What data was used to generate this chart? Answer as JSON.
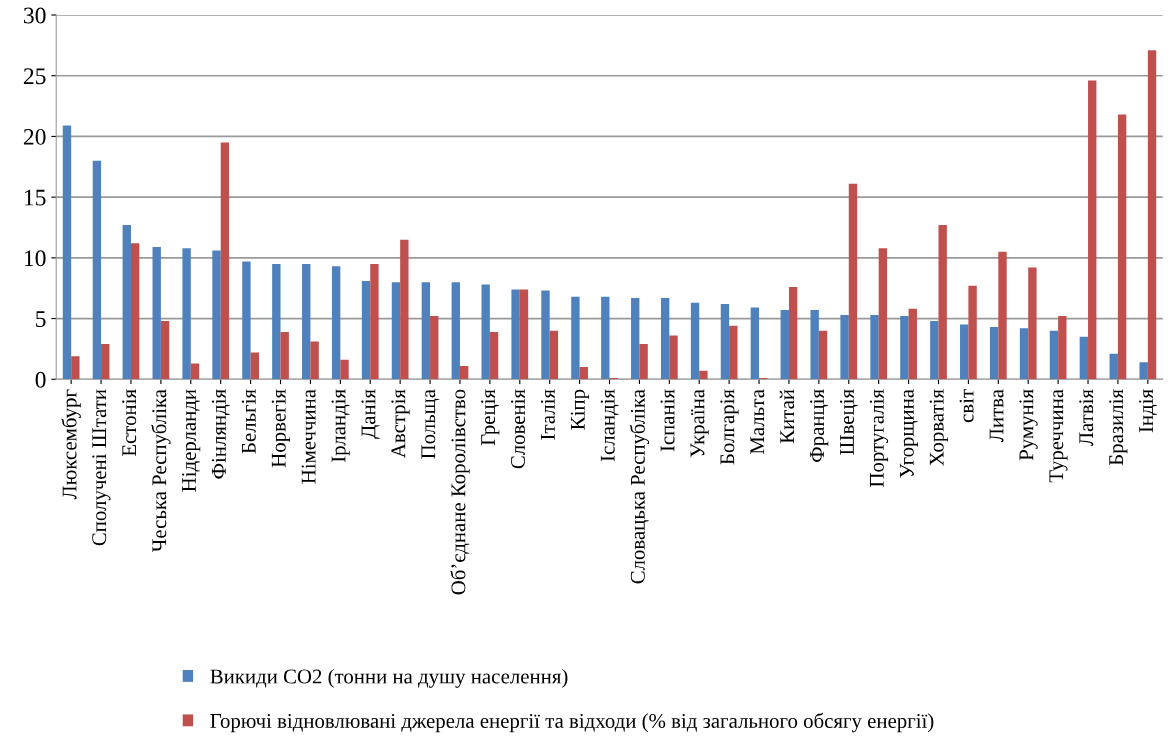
{
  "chart_data": {
    "type": "bar",
    "categories": [
      "Люксембург",
      "Сполучені Штати",
      "Естонія",
      "Чеська Республіка",
      "Нідерланди",
      "Фінляндія",
      "Бельгія",
      "Норвегія",
      "Німеччина",
      "Ірландія",
      "Данія",
      "Австрія",
      "Польща",
      "Об’єднане Королівство",
      "Греція",
      "Словенія",
      "Італія",
      "Кіпр",
      "Ісландія",
      "Словацька Республіка",
      "Іспанія",
      "Україна",
      "Болгарія",
      "Мальта",
      "Китай",
      "Франція",
      "Швеція",
      "Португалія",
      "Угорщина",
      "Хорватія",
      "світ",
      "Литва",
      "Румунія",
      "Туреччина",
      "Латвія",
      "Бразилія",
      "Індія"
    ],
    "series": [
      {
        "name": "Викиди CO2 (тонни на душу населення)",
        "color": "#4f81bd",
        "values": [
          20.9,
          18.0,
          12.7,
          10.9,
          10.8,
          10.6,
          9.7,
          9.5,
          9.5,
          9.3,
          8.1,
          8.0,
          8.0,
          8.0,
          7.8,
          7.4,
          7.3,
          6.8,
          6.8,
          6.7,
          6.7,
          6.3,
          6.2,
          5.9,
          5.7,
          5.7,
          5.3,
          5.3,
          5.2,
          4.8,
          4.5,
          4.3,
          4.2,
          4.0,
          3.5,
          2.1,
          1.4
        ]
      },
      {
        "name": "Горючі відновлювані джерела енергії та відходи (% від загального обсягу енергії)",
        "color": "#c0504d",
        "values": [
          1.9,
          2.9,
          11.2,
          4.8,
          1.3,
          19.5,
          2.2,
          3.9,
          3.1,
          1.6,
          9.5,
          11.5,
          5.2,
          1.1,
          3.9,
          7.4,
          4.0,
          1.0,
          0.1,
          2.9,
          3.6,
          0.7,
          4.4,
          0.1,
          7.6,
          4.0,
          16.1,
          10.8,
          5.8,
          12.7,
          7.7,
          10.5,
          9.2,
          5.2,
          24.6,
          21.8,
          27.1
        ]
      }
    ],
    "ylim": [
      0,
      30
    ],
    "yticks": [
      0,
      5,
      10,
      15,
      20,
      25,
      30
    ],
    "grid": "y",
    "legend": "bottom"
  }
}
